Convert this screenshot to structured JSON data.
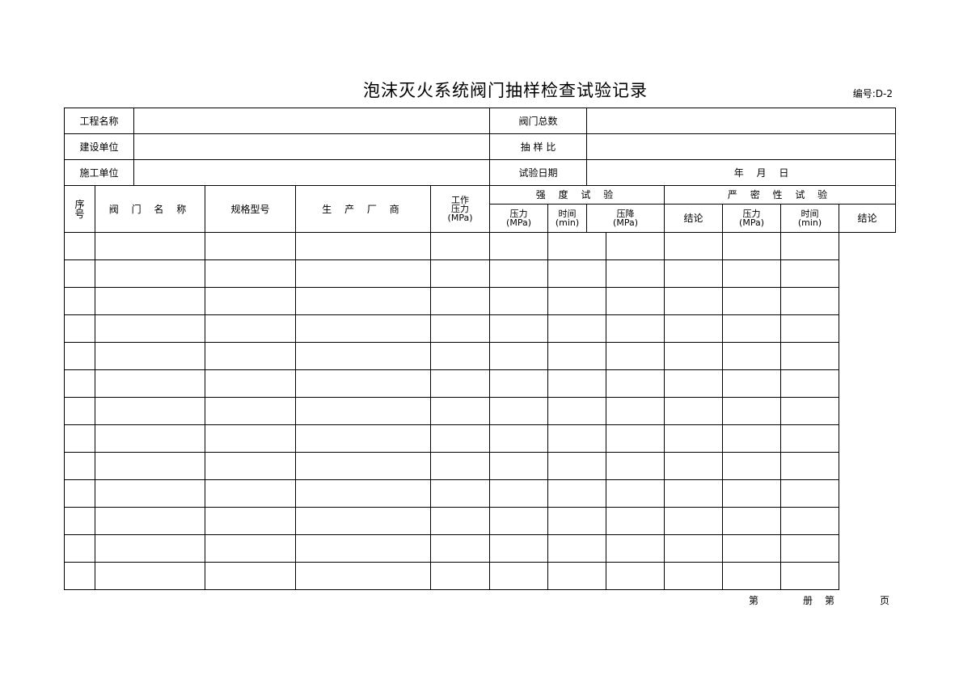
{
  "title": "泡沫灭火系统阀门抽样检查试验记录",
  "code": "编号:D-2",
  "info": {
    "project_name_label": "工程名称",
    "project_name": "",
    "builder_label": "建设单位",
    "builder": "",
    "contractor_label": "施工单位",
    "contractor": "",
    "valve_total_label": "阀门总数",
    "valve_total": "",
    "sample_ratio_label": "抽 样 比",
    "sample_ratio": "",
    "test_date_label": "试验日期",
    "test_date": "年　 月　 日"
  },
  "columns": {
    "seq": "序号",
    "valve_name": "阀 门 名 称",
    "spec": "规格型号",
    "maker": "生 产 厂 商",
    "work_pressure": "工作",
    "work_pressure2": "压力",
    "work_pressure_unit": "(MPa)",
    "strength": "强 度 试 验",
    "tightness": "严 密 性 试 验",
    "pressure": "压力",
    "mpa": "(MPa)",
    "time": "时间",
    "min": "(min)",
    "drop": "压降",
    "conclusion": "结论"
  },
  "rows": 13,
  "footer": {
    "no": "第",
    "volume": "册",
    "no2": "第",
    "page": "页"
  }
}
